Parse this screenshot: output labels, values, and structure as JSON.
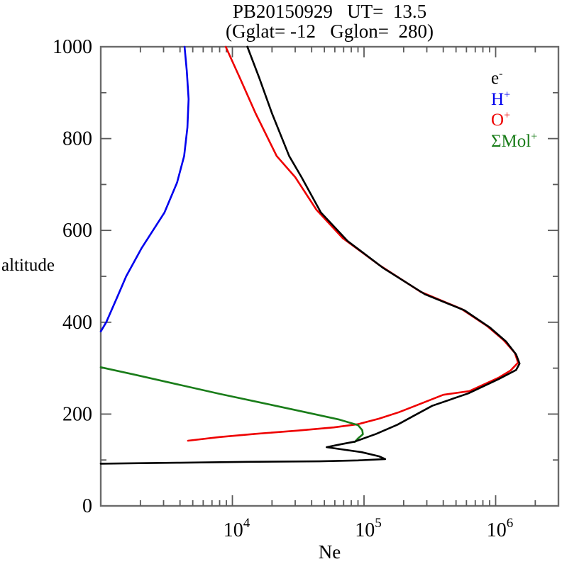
{
  "title": "PB20150929   UT=  13.5",
  "subtitle": "(Gglat= -12   Gglon=  280)",
  "axis_labels": {
    "x": "Ne",
    "y": "altitude"
  },
  "legend": {
    "items": [
      {
        "base": "e",
        "sup": "-",
        "color": "#000000",
        "series": "electron"
      },
      {
        "base": "H",
        "sup": "+",
        "color": "#0000ee",
        "series": "H+"
      },
      {
        "base": "O",
        "sup": "+",
        "color": "#ee0000",
        "series": "O+"
      },
      {
        "base": "ΣMol",
        "sup": "+",
        "color": "#1a7d1a",
        "series": "molecular-ions"
      }
    ]
  },
  "chart_data": {
    "type": "line",
    "title": "PB20150929 UT= 13.5",
    "subtitle": "(Gglat= -12 Gglon= 280)",
    "xlabel": "Ne",
    "ylabel": "altitude",
    "x_scale": "log",
    "xlim": [
      1000,
      3000000
    ],
    "ylim": [
      0,
      1000
    ],
    "grid": false,
    "legend_position": "upper-right-inside",
    "x_major_ticks": [
      {
        "value": 10000,
        "base": "10",
        "sup": "4"
      },
      {
        "value": 100000,
        "base": "10",
        "sup": "5"
      },
      {
        "value": 1000000,
        "base": "10",
        "sup": "6"
      }
    ],
    "x_minor_multiples": [
      2,
      3,
      4,
      5,
      6,
      7,
      8,
      9
    ],
    "y_major_tick_step": 200,
    "y_minor_tick_step": 100,
    "y_tick_labels": [
      0,
      200,
      400,
      600,
      800,
      1000
    ],
    "series": [
      {
        "name": "e-",
        "id": "electron",
        "color": "#000000",
        "z": 4,
        "points_unit": "[Ne cm^-3, altitude km]",
        "points": [
          [
            1000,
            92
          ],
          [
            2000,
            93
          ],
          [
            3800,
            94
          ],
          [
            13000,
            96
          ],
          [
            46000,
            97
          ],
          [
            90000,
            99
          ],
          [
            145000,
            102
          ],
          [
            130000,
            108
          ],
          [
            96000,
            117
          ],
          [
            52000,
            128
          ],
          [
            66000,
            134
          ],
          [
            85000,
            140
          ],
          [
            124000,
            157
          ],
          [
            180000,
            177
          ],
          [
            245000,
            198
          ],
          [
            330000,
            218
          ],
          [
            620000,
            245
          ],
          [
            1050000,
            276
          ],
          [
            1430000,
            296
          ],
          [
            1520000,
            310
          ],
          [
            1430000,
            330
          ],
          [
            1200000,
            358
          ],
          [
            900000,
            389
          ],
          [
            580000,
            426
          ],
          [
            290000,
            461
          ],
          [
            140000,
            518
          ],
          [
            75000,
            577
          ],
          [
            47000,
            639
          ],
          [
            33500,
            716
          ],
          [
            27000,
            762
          ],
          [
            20000,
            855
          ],
          [
            16000,
            932
          ],
          [
            13000,
            1000
          ]
        ]
      },
      {
        "name": "H+",
        "id": "H+",
        "color": "#0000ee",
        "z": 3,
        "points_unit": "[Ne cm^-3, altitude km]",
        "points": [
          [
            1000,
            380
          ],
          [
            1100,
            400
          ],
          [
            1330,
            454
          ],
          [
            1560,
            500
          ],
          [
            2050,
            562
          ],
          [
            3050,
            639
          ],
          [
            3800,
            704
          ],
          [
            4300,
            762
          ],
          [
            4550,
            824
          ],
          [
            4650,
            886
          ],
          [
            4500,
            948
          ],
          [
            4330,
            1000
          ]
        ]
      },
      {
        "name": "O+",
        "id": "O+",
        "color": "#ee0000",
        "z": 1,
        "points_unit": "[Ne cm^-3, altitude km]",
        "points": [
          [
            4600,
            142
          ],
          [
            8000,
            150
          ],
          [
            15000,
            157
          ],
          [
            31500,
            164
          ],
          [
            59000,
            171
          ],
          [
            90000,
            178
          ],
          [
            130000,
            190
          ],
          [
            184000,
            204
          ],
          [
            267000,
            222
          ],
          [
            400000,
            242
          ],
          [
            630000,
            250
          ],
          [
            1050000,
            279
          ],
          [
            1300000,
            295
          ],
          [
            1480000,
            312
          ],
          [
            1400000,
            333
          ],
          [
            1150000,
            361
          ],
          [
            860000,
            392
          ],
          [
            550000,
            429
          ],
          [
            270000,
            466
          ],
          [
            130000,
            525
          ],
          [
            69000,
            583
          ],
          [
            43500,
            645
          ],
          [
            30000,
            716
          ],
          [
            21700,
            762
          ],
          [
            15000,
            855
          ],
          [
            11400,
            932
          ],
          [
            8900,
            1000
          ]
        ]
      },
      {
        "name": "ΣMol+",
        "id": "molecular-ions",
        "color": "#1a7d1a",
        "z": 2,
        "points_unit": "[Ne cm^-3, altitude km]",
        "points": [
          [
            1000,
            302
          ],
          [
            1800,
            286
          ],
          [
            3800,
            265
          ],
          [
            8000,
            244
          ],
          [
            17000,
            224
          ],
          [
            36000,
            204
          ],
          [
            65000,
            188
          ],
          [
            90000,
            176
          ],
          [
            97000,
            165
          ],
          [
            98000,
            156
          ],
          [
            90000,
            147
          ],
          [
            85000,
            139
          ]
        ]
      }
    ]
  }
}
